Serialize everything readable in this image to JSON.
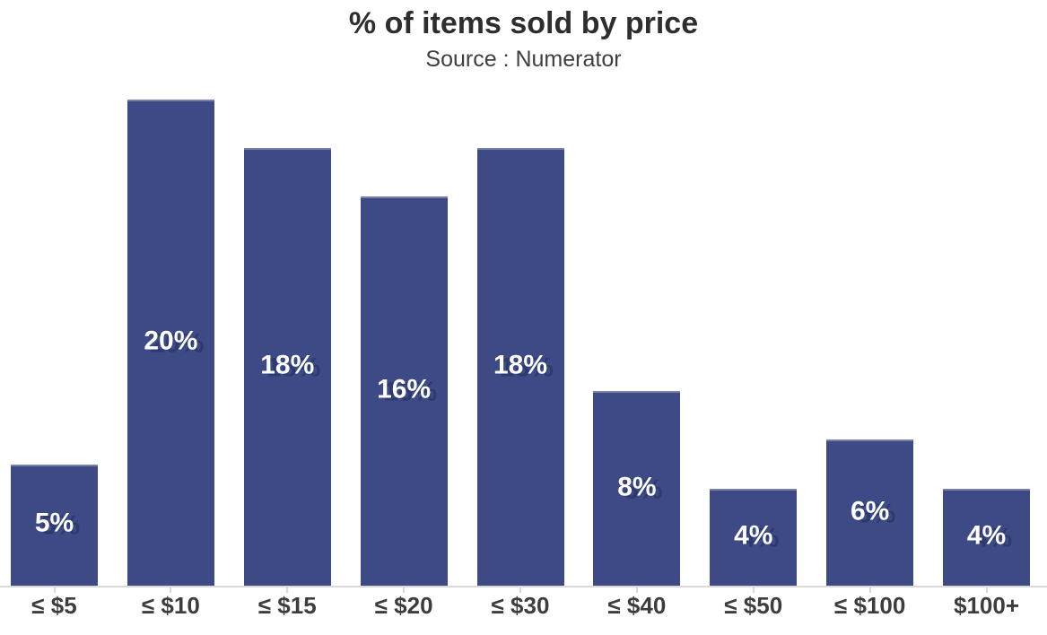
{
  "chart_data": {
    "type": "bar",
    "title": "% of items sold by price",
    "subtitle": "Source : Numerator",
    "categories": [
      "≤ $5",
      "≤ $10",
      "≤ $15",
      "≤ $20",
      "≤ $30",
      "≤ $40",
      "≤ $50",
      "≤ $100",
      "$100+"
    ],
    "values": [
      5,
      20,
      18,
      16,
      18,
      8,
      4,
      6,
      4
    ],
    "bar_labels": [
      "5%",
      "20%",
      "18%",
      "16%",
      "18%",
      "8%",
      "4%",
      "6%",
      "4%"
    ],
    "xlabel": "",
    "ylabel": "",
    "ylim": [
      0,
      20
    ],
    "grid": false,
    "legend": false,
    "orientation": "vertical",
    "value_label_position": "centered-inside-bar",
    "colors": {
      "bar": "#3e4a85",
      "bar_label_text": "#ffffff",
      "bar_label_shadow": "#2c3a6e",
      "axis_line": "#d9d9d9",
      "title_text": "#2e2e2e",
      "subtitle_text": "#3f3f3f",
      "axis_label_text": "#3d3d3d"
    }
  }
}
